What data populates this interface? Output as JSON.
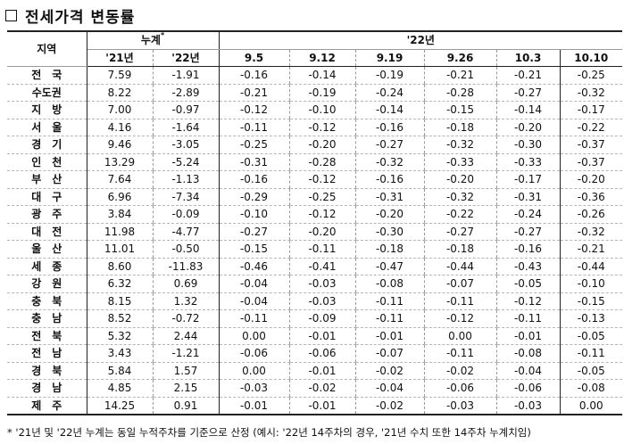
{
  "title": {
    "box_icon": "square-outline-icon",
    "text": "전세가격 변동률"
  },
  "table": {
    "region_header": "지역",
    "cumulative_header": "누계",
    "cumulative_mark": "*",
    "year22_header": "'22년",
    "col_21": "'21년",
    "col_22": "'22년",
    "weeks": [
      "9.5",
      "9.12",
      "9.19",
      "9.26",
      "10.3",
      "10.10"
    ],
    "rows": [
      {
        "region": "전　국",
        "c21": "7.59",
        "c22": "-1.91",
        "w": [
          "-0.16",
          "-0.14",
          "-0.19",
          "-0.21",
          "-0.21",
          "-0.25"
        ]
      },
      {
        "region": "수도권",
        "c21": "8.22",
        "c22": "-2.89",
        "w": [
          "-0.21",
          "-0.19",
          "-0.24",
          "-0.28",
          "-0.27",
          "-0.32"
        ]
      },
      {
        "region": "지　방",
        "c21": "7.00",
        "c22": "-0.97",
        "w": [
          "-0.12",
          "-0.10",
          "-0.14",
          "-0.15",
          "-0.14",
          "-0.17"
        ]
      },
      {
        "region": "서　울",
        "c21": "4.16",
        "c22": "-1.64",
        "w": [
          "-0.11",
          "-0.12",
          "-0.16",
          "-0.18",
          "-0.20",
          "-0.22"
        ]
      },
      {
        "region": "경　기",
        "c21": "9.46",
        "c22": "-3.05",
        "w": [
          "-0.25",
          "-0.20",
          "-0.27",
          "-0.32",
          "-0.30",
          "-0.37"
        ]
      },
      {
        "region": "인　천",
        "c21": "13.29",
        "c22": "-5.24",
        "w": [
          "-0.31",
          "-0.28",
          "-0.32",
          "-0.33",
          "-0.33",
          "-0.37"
        ]
      },
      {
        "region": "부　산",
        "c21": "7.64",
        "c22": "-1.13",
        "w": [
          "-0.16",
          "-0.12",
          "-0.16",
          "-0.20",
          "-0.17",
          "-0.20"
        ]
      },
      {
        "region": "대　구",
        "c21": "6.96",
        "c22": "-7.34",
        "w": [
          "-0.29",
          "-0.25",
          "-0.31",
          "-0.32",
          "-0.31",
          "-0.36"
        ]
      },
      {
        "region": "광　주",
        "c21": "3.84",
        "c22": "-0.09",
        "w": [
          "-0.10",
          "-0.12",
          "-0.20",
          "-0.22",
          "-0.24",
          "-0.26"
        ]
      },
      {
        "region": "대　전",
        "c21": "11.98",
        "c22": "-4.77",
        "w": [
          "-0.27",
          "-0.20",
          "-0.30",
          "-0.27",
          "-0.27",
          "-0.32"
        ]
      },
      {
        "region": "울　산",
        "c21": "11.01",
        "c22": "-0.50",
        "w": [
          "-0.15",
          "-0.11",
          "-0.18",
          "-0.18",
          "-0.16",
          "-0.21"
        ]
      },
      {
        "region": "세　종",
        "c21": "8.60",
        "c22": "-11.83",
        "w": [
          "-0.46",
          "-0.41",
          "-0.47",
          "-0.44",
          "-0.43",
          "-0.44"
        ]
      },
      {
        "region": "강　원",
        "c21": "6.32",
        "c22": "0.69",
        "w": [
          "-0.04",
          "-0.03",
          "-0.08",
          "-0.07",
          "-0.05",
          "-0.10"
        ]
      },
      {
        "region": "충　북",
        "c21": "8.15",
        "c22": "1.32",
        "w": [
          "-0.04",
          "-0.03",
          "-0.11",
          "-0.11",
          "-0.12",
          "-0.15"
        ]
      },
      {
        "region": "충　남",
        "c21": "8.52",
        "c22": "-0.72",
        "w": [
          "-0.11",
          "-0.09",
          "-0.11",
          "-0.12",
          "-0.11",
          "-0.13"
        ]
      },
      {
        "region": "전　북",
        "c21": "5.32",
        "c22": "2.44",
        "w": [
          "0.00",
          "-0.01",
          "-0.01",
          "0.00",
          "-0.01",
          "-0.05"
        ]
      },
      {
        "region": "전　남",
        "c21": "3.43",
        "c22": "-1.21",
        "w": [
          "-0.06",
          "-0.06",
          "-0.07",
          "-0.11",
          "-0.08",
          "-0.11"
        ]
      },
      {
        "region": "경　북",
        "c21": "5.84",
        "c22": "1.57",
        "w": [
          "0.00",
          "-0.01",
          "-0.02",
          "-0.02",
          "-0.04",
          "-0.05"
        ]
      },
      {
        "region": "경　남",
        "c21": "4.85",
        "c22": "2.15",
        "w": [
          "-0.03",
          "-0.02",
          "-0.04",
          "-0.06",
          "-0.06",
          "-0.08"
        ]
      },
      {
        "region": "제　주",
        "c21": "14.25",
        "c22": "0.91",
        "w": [
          "-0.01",
          "-0.01",
          "-0.02",
          "-0.03",
          "-0.03",
          "0.00"
        ]
      }
    ]
  },
  "note": "* '21년 및 '22년 누계는 동일 누적주차를 기준으로 산정 (예시: '22년 14주차의 경우, '21년 수치 또한 14주차 누계치임)"
}
